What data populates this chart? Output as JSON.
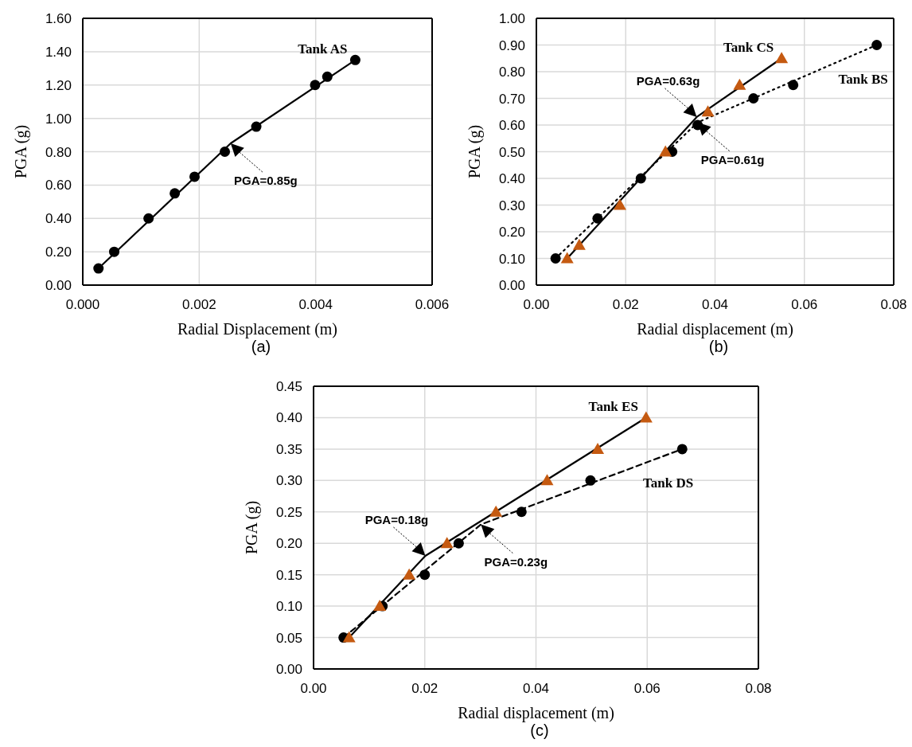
{
  "chart_data": [
    {
      "type": "scatter",
      "xlabel": "Radial Displacement (m)",
      "ylabel": "PGA (g)",
      "grid": true,
      "xlim": [
        0,
        0.006
      ],
      "xticks": [
        {
          "value": 0,
          "label": "0.000"
        },
        {
          "value": 0.002,
          "label": "0.002"
        },
        {
          "value": 0.004,
          "label": "0.004"
        },
        {
          "value": 0.006,
          "label": "0.006"
        }
      ],
      "ylim": [
        0,
        1.6
      ],
      "yticks": [
        {
          "value": 0,
          "label": "0.00"
        },
        {
          "value": 0.2,
          "label": "0.20"
        },
        {
          "value": 0.4,
          "label": "0.40"
        },
        {
          "value": 0.6,
          "label": "0.60"
        },
        {
          "value": 0.8,
          "label": "0.80"
        },
        {
          "value": 1.0,
          "label": "1.00"
        },
        {
          "value": 1.2,
          "label": "1.20"
        },
        {
          "value": 1.4,
          "label": "1.40"
        },
        {
          "value": 1.6,
          "label": "1.60"
        }
      ],
      "series": [
        {
          "name": "Tank AS",
          "type": "line",
          "color": "#000000",
          "line_style": "solid",
          "marker": "none",
          "x": [
            0.00027,
            0.00254,
            0.00468
          ],
          "values": [
            0.1,
            0.85,
            1.35
          ]
        },
        {
          "color": "#000000",
          "marker": "circle",
          "x": [
            0.00027,
            0.00054,
            0.00113,
            0.00158,
            0.00192,
            0.00244,
            0.00298,
            0.00399,
            0.0042,
            0.00468
          ],
          "values": [
            0.1,
            0.2,
            0.4,
            0.55,
            0.65,
            0.8,
            0.95,
            1.2,
            1.25,
            1.35
          ]
        }
      ],
      "annotations": [
        {
          "text": "PGA=0.85g",
          "x": 0.00254,
          "y": 0.85
        },
        "(a)"
      ]
    },
    {
      "type": "scatter",
      "xlabel": "Radial displacement (m)",
      "ylabel": "PGA (g)",
      "grid": true,
      "xlim": [
        0,
        0.08
      ],
      "xticks": [
        {
          "value": 0,
          "label": "0.00"
        },
        {
          "value": 0.02,
          "label": "0.02"
        },
        {
          "value": 0.04,
          "label": "0.04"
        },
        {
          "value": 0.06,
          "label": "0.06"
        },
        {
          "value": 0.08,
          "label": "0.08"
        }
      ],
      "ylim": [
        0,
        1.0
      ],
      "yticks": [
        {
          "value": 0,
          "label": "0.00"
        },
        {
          "value": 0.1,
          "label": "0.10"
        },
        {
          "value": 0.2,
          "label": "0.20"
        },
        {
          "value": 0.3,
          "label": "0.30"
        },
        {
          "value": 0.4,
          "label": "0.40"
        },
        {
          "value": 0.5,
          "label": "0.50"
        },
        {
          "value": 0.6,
          "label": "0.60"
        },
        {
          "value": 0.7,
          "label": "0.70"
        },
        {
          "value": 0.8,
          "label": "0.80"
        },
        {
          "value": 0.9,
          "label": "0.90"
        },
        {
          "value": 1.0,
          "label": "1.00"
        }
      ],
      "series": [
        {
          "name": "Tank CS",
          "type": "line",
          "color": "#000000",
          "line_style": "solid",
          "marker": "none",
          "x": [
            0.0069,
            0.0359,
            0.0549
          ],
          "values": [
            0.1,
            0.63,
            0.85
          ]
        },
        {
          "name": "Tank BS",
          "type": "line",
          "color": "#000000",
          "line_style": "dotted",
          "marker": "none",
          "x": [
            0.0043,
            0.0361,
            0.0762
          ],
          "values": [
            0.1,
            0.61,
            0.9
          ]
        },
        {
          "color": "#000000",
          "marker": "circle",
          "x": [
            0.0043,
            0.0137,
            0.0234,
            0.0304,
            0.0361,
            0.0486,
            0.0575,
            0.0762
          ],
          "values": [
            0.1,
            0.25,
            0.4,
            0.5,
            0.6,
            0.7,
            0.75,
            0.9
          ]
        },
        {
          "color": "#c55a11",
          "marker": "triangle",
          "x": [
            0.0069,
            0.0096,
            0.0187,
            0.0289,
            0.0384,
            0.0455,
            0.0549
          ],
          "values": [
            0.1,
            0.15,
            0.3,
            0.5,
            0.65,
            0.75,
            0.85
          ]
        }
      ],
      "annotations": [
        {
          "text": "PGA=0.63g",
          "x": 0.0359,
          "y": 0.63
        },
        {
          "text": "PGA=0.61g",
          "x": 0.0361,
          "y": 0.61
        },
        "(b)"
      ]
    },
    {
      "type": "scatter",
      "xlabel": "Radial displacement (m)",
      "ylabel": "PGA (g)",
      "grid": true,
      "xlim": [
        0,
        0.08
      ],
      "xticks": [
        {
          "value": 0,
          "label": "0.00"
        },
        {
          "value": 0.02,
          "label": "0.02"
        },
        {
          "value": 0.04,
          "label": "0.04"
        },
        {
          "value": 0.06,
          "label": "0.06"
        },
        {
          "value": 0.08,
          "label": "0.08"
        }
      ],
      "ylim": [
        0,
        0.45
      ],
      "yticks": [
        {
          "value": 0,
          "label": "0.00"
        },
        {
          "value": 0.05,
          "label": "0.05"
        },
        {
          "value": 0.1,
          "label": "0.10"
        },
        {
          "value": 0.15,
          "label": "0.15"
        },
        {
          "value": 0.2,
          "label": "0.20"
        },
        {
          "value": 0.25,
          "label": "0.25"
        },
        {
          "value": 0.3,
          "label": "0.30"
        },
        {
          "value": 0.35,
          "label": "0.35"
        },
        {
          "value": 0.4,
          "label": "0.40"
        },
        {
          "value": 0.45,
          "label": "0.45"
        }
      ],
      "series": [
        {
          "name": "Tank ES",
          "type": "line",
          "color": "#000000",
          "line_style": "solid",
          "marker": "none",
          "x": [
            0.0064,
            0.0201,
            0.0598
          ],
          "values": [
            0.05,
            0.18,
            0.4
          ]
        },
        {
          "name": "Tank DS",
          "type": "line",
          "color": "#000000",
          "line_style": "dashed",
          "marker": "none",
          "x": [
            0.0054,
            0.0301,
            0.0663
          ],
          "values": [
            0.05,
            0.23,
            0.35
          ]
        },
        {
          "color": "#000000",
          "marker": "circle",
          "x": [
            0.0054,
            0.0124,
            0.02,
            0.0261,
            0.0374,
            0.0498,
            0.0663
          ],
          "values": [
            0.05,
            0.1,
            0.15,
            0.2,
            0.25,
            0.3,
            0.35
          ]
        },
        {
          "color": "#c55a11",
          "marker": "triangle",
          "x": [
            0.0064,
            0.0119,
            0.0172,
            0.024,
            0.0328,
            0.042,
            0.0511,
            0.0598
          ],
          "values": [
            0.05,
            0.1,
            0.15,
            0.2,
            0.25,
            0.3,
            0.35,
            0.4
          ]
        }
      ],
      "annotations": [
        {
          "text": "PGA=0.18g",
          "x": 0.0201,
          "y": 0.18
        },
        {
          "text": "PGA=0.23g",
          "x": 0.0301,
          "y": 0.23
        },
        "(c)"
      ]
    }
  ]
}
